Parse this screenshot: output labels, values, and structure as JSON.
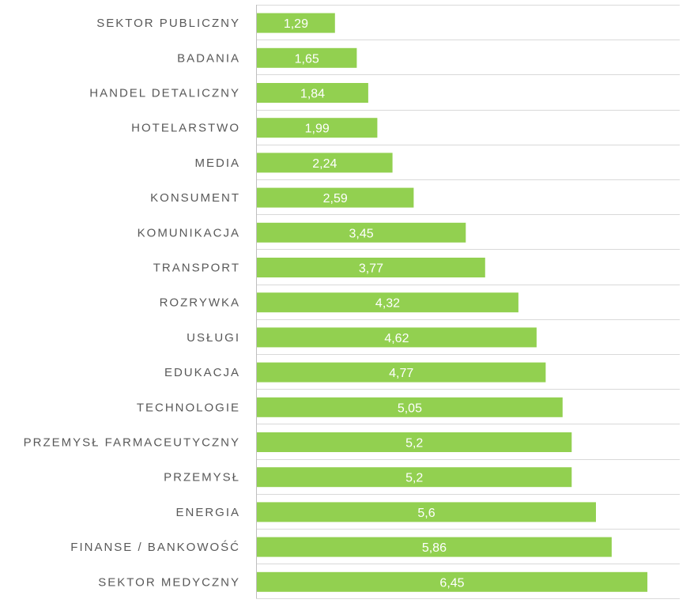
{
  "chart_data": {
    "type": "bar",
    "orientation": "horizontal",
    "title": "",
    "xlabel": "",
    "ylabel": "",
    "grid": true,
    "legend": "none",
    "bar_color": "#92d050",
    "xlim": [
      0,
      7
    ],
    "categories": [
      "SEKTOR PUBLICZNY",
      "BADANIA",
      "HANDEL DETALICZNY",
      "HOTELARSTWO",
      "MEDIA",
      "KONSUMENT",
      "KOMUNIKACJA",
      "TRANSPORT",
      "ROZRYWKA",
      "USŁUGI",
      "EDUKACJA",
      "TECHNOLOGIE",
      "PRZEMYSŁ FARMACEUTYCZNY",
      "PRZEMYSŁ",
      "ENERGIA",
      "FINANSE / BANKOWOŚĆ",
      "SEKTOR MEDYCZNY"
    ],
    "values": [
      1.29,
      1.65,
      1.84,
      1.99,
      2.24,
      2.59,
      3.45,
      3.77,
      4.32,
      4.62,
      4.77,
      5.05,
      5.2,
      5.2,
      5.6,
      5.86,
      6.45
    ],
    "value_labels": [
      "1,29",
      "1,65",
      "1,84",
      "1,99",
      "2,24",
      "2,59",
      "3,45",
      "3,77",
      "4,32",
      "4,62",
      "4,77",
      "5,05",
      "5,2",
      "5,2",
      "5,6",
      "5,86",
      "6,45"
    ]
  }
}
